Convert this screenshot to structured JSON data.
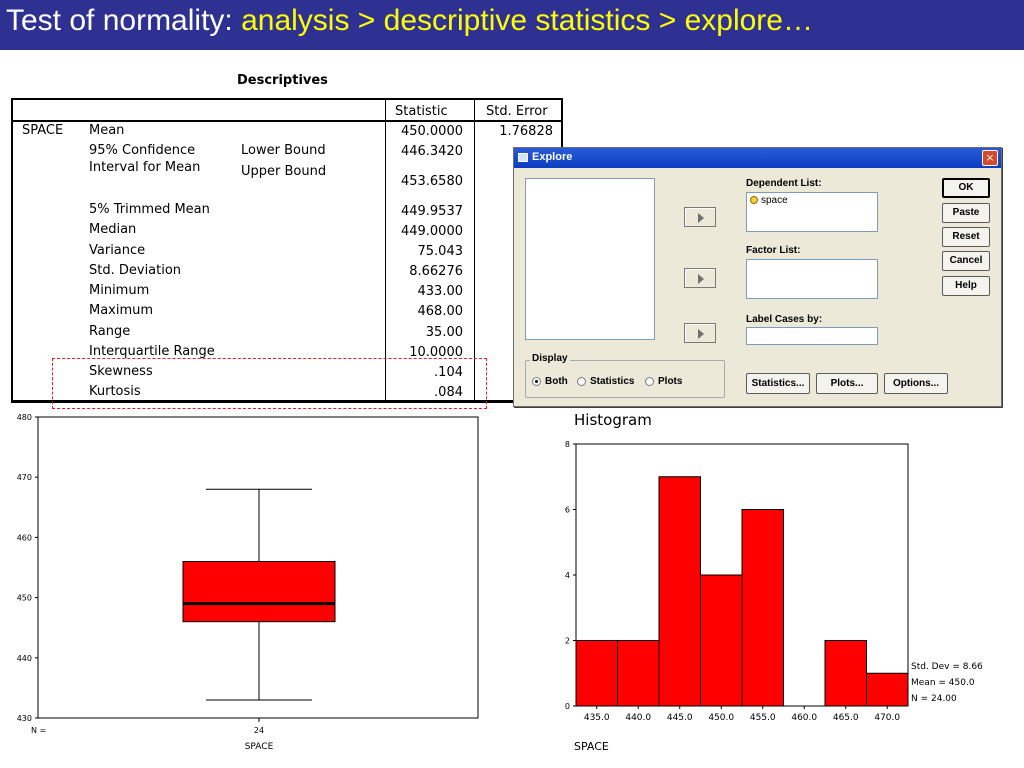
{
  "slide": {
    "title_prefix": "Test of normality: ",
    "title_path": "analysis > descriptive statistics > explore…"
  },
  "descriptives": {
    "title": "Descriptives",
    "headers": {
      "statistic": "Statistic",
      "std_error": "Std. Error"
    },
    "variable": "SPACE",
    "rows": [
      {
        "label": "Mean",
        "statistic": "450.0000",
        "std_error": "1.76828"
      },
      {
        "label": "95% Confidence",
        "label2": "Interval for Mean",
        "sub1": "Lower Bound",
        "stat1": "446.3420",
        "sub2": "Upper Bound",
        "stat2": "453.6580"
      },
      {
        "label": "5% Trimmed Mean",
        "statistic": "449.9537"
      },
      {
        "label": "Median",
        "statistic": "449.0000"
      },
      {
        "label": "Variance",
        "statistic": "75.043"
      },
      {
        "label": "Std. Deviation",
        "statistic": "8.66276"
      },
      {
        "label": "Minimum",
        "statistic": "433.00"
      },
      {
        "label": "Maximum",
        "statistic": "468.00"
      },
      {
        "label": "Range",
        "statistic": "35.00"
      },
      {
        "label": "Interquartile Range",
        "statistic": "10.0000"
      },
      {
        "label": "Skewness",
        "statistic": ".104"
      },
      {
        "label": "Kurtosis",
        "statistic": ".084"
      }
    ]
  },
  "explore_dialog": {
    "title": "Explore",
    "close": "×",
    "dependent_label": "Dependent List:",
    "dependent_item": "space",
    "factor_label": "Factor List:",
    "label_cases_label": "Label Cases by:",
    "buttons": {
      "ok": "OK",
      "paste": "Paste",
      "reset": "Reset",
      "cancel": "Cancel",
      "help": "Help"
    },
    "display": {
      "legend": "Display",
      "options": [
        "Both",
        "Statistics",
        "Plots"
      ],
      "selected": "Both"
    },
    "bottom_buttons": {
      "statistics": "Statistics...",
      "plots": "Plots...",
      "options": "Options..."
    }
  },
  "chart_data": [
    {
      "type": "box",
      "ylim": [
        430,
        480
      ],
      "yticks": [
        430,
        440,
        450,
        460,
        470,
        480
      ],
      "n_label": "N =",
      "n": "24",
      "xlabel": "SPACE",
      "box": {
        "min": 433,
        "q1": 446,
        "median": 449,
        "q3": 456,
        "max": 468
      },
      "fill": "#ff0000"
    },
    {
      "type": "bar",
      "title": "Histogram",
      "xlabel": "SPACE",
      "categories": [
        "435.0",
        "440.0",
        "445.0",
        "450.0",
        "455.0",
        "460.0",
        "465.0",
        "470.0"
      ],
      "values": [
        2,
        2,
        7,
        4,
        6,
        0,
        2,
        1
      ],
      "ylim": [
        0,
        8
      ],
      "yticks": [
        0,
        2,
        4,
        6,
        8
      ],
      "stats": [
        "Std. Dev = 8.66",
        "Mean = 450.0",
        "N = 24.00"
      ],
      "fill": "#ff0000"
    }
  ]
}
